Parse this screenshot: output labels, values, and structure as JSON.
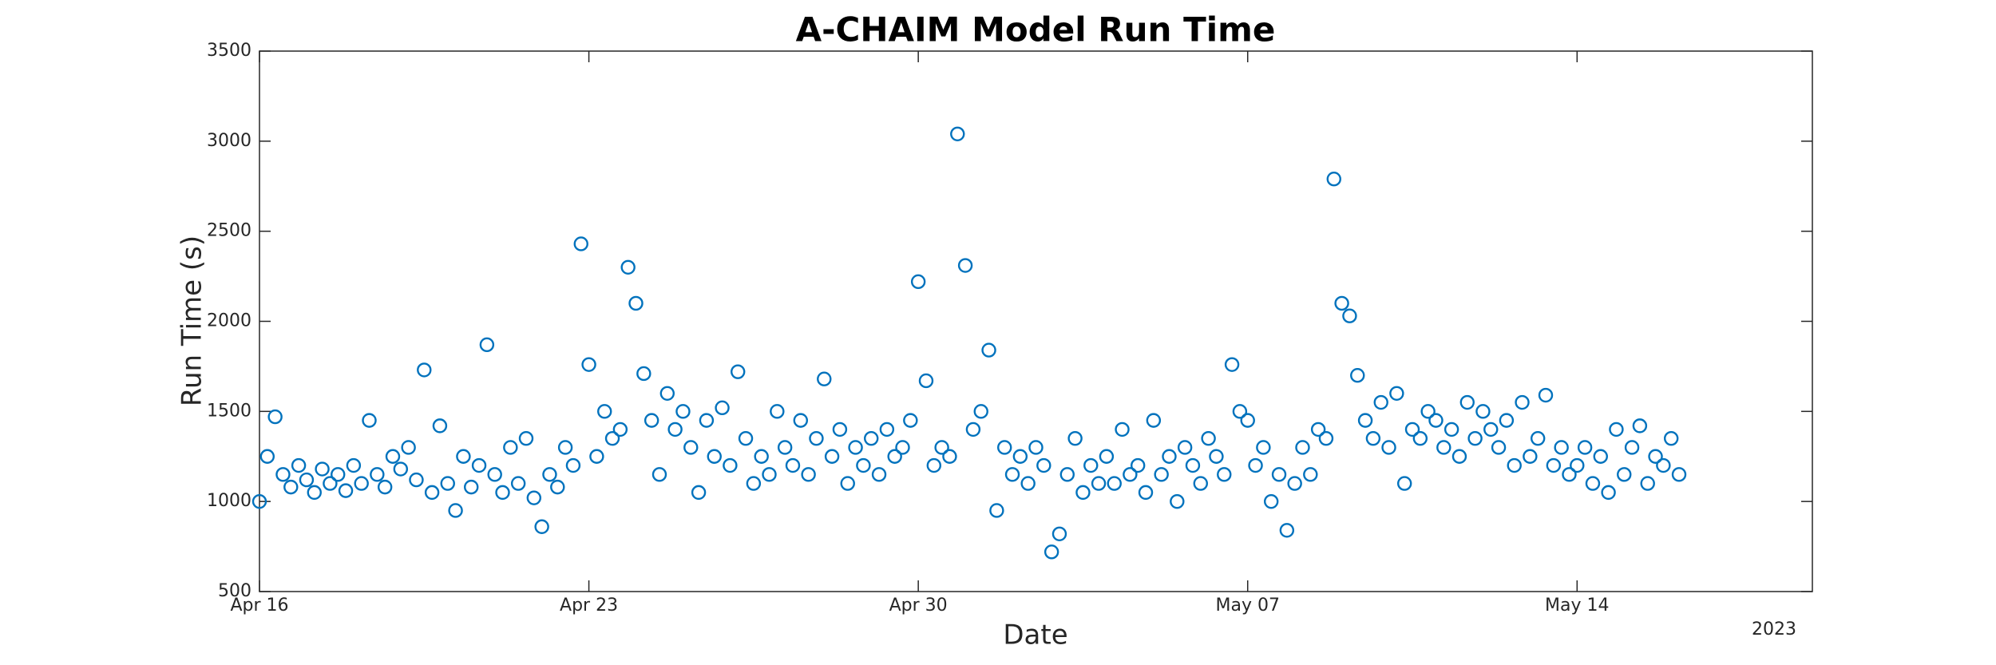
{
  "chart_data": {
    "type": "scatter",
    "title": "A-CHAIM Model Run Time",
    "xlabel": "Date",
    "ylabel": "Run Time (s)",
    "x_secondary_label": "2023",
    "color": "#0072bd",
    "marker": "open-circle",
    "xlim": [
      "2023-04-16",
      "2023-05-19"
    ],
    "xticks": [
      {
        "value": "2023-04-16",
        "label": "Apr 16"
      },
      {
        "value": "2023-04-23",
        "label": "Apr 23"
      },
      {
        "value": "2023-04-30",
        "label": "Apr 30"
      },
      {
        "value": "2023-05-07",
        "label": "May 07"
      },
      {
        "value": "2023-05-14",
        "label": "May 14"
      }
    ],
    "ylim": [
      500,
      3500
    ],
    "yticks": [
      500,
      1000,
      1500,
      2000,
      2500,
      3000,
      3500
    ],
    "grid": false,
    "x": [
      "2023-04-16T00:00",
      "2023-04-16T04:00",
      "2023-04-16T08:00",
      "2023-04-16T12:00",
      "2023-04-16T16:00",
      "2023-04-16T20:00",
      "2023-04-17T00:00",
      "2023-04-17T04:00",
      "2023-04-17T08:00",
      "2023-04-17T12:00",
      "2023-04-17T16:00",
      "2023-04-17T20:00",
      "2023-04-18T00:00",
      "2023-04-18T04:00",
      "2023-04-18T08:00",
      "2023-04-18T12:00",
      "2023-04-18T16:00",
      "2023-04-18T20:00",
      "2023-04-19T00:00",
      "2023-04-19T04:00",
      "2023-04-19T08:00",
      "2023-04-19T12:00",
      "2023-04-19T16:00",
      "2023-04-19T20:00",
      "2023-04-20T00:00",
      "2023-04-20T04:00",
      "2023-04-20T08:00",
      "2023-04-20T12:00",
      "2023-04-20T16:00",
      "2023-04-20T20:00",
      "2023-04-21T00:00",
      "2023-04-21T04:00",
      "2023-04-21T08:00",
      "2023-04-21T12:00",
      "2023-04-21T16:00",
      "2023-04-21T20:00",
      "2023-04-22T00:00",
      "2023-04-22T04:00",
      "2023-04-22T08:00",
      "2023-04-22T12:00",
      "2023-04-22T16:00",
      "2023-04-22T20:00",
      "2023-04-23T00:00",
      "2023-04-23T04:00",
      "2023-04-23T08:00",
      "2023-04-23T12:00",
      "2023-04-23T16:00",
      "2023-04-23T20:00",
      "2023-04-24T00:00",
      "2023-04-24T04:00",
      "2023-04-24T08:00",
      "2023-04-24T12:00",
      "2023-04-24T16:00",
      "2023-04-24T20:00",
      "2023-04-25T00:00",
      "2023-04-25T04:00",
      "2023-04-25T08:00",
      "2023-04-25T12:00",
      "2023-04-25T16:00",
      "2023-04-25T20:00",
      "2023-04-26T00:00",
      "2023-04-26T04:00",
      "2023-04-26T08:00",
      "2023-04-26T12:00",
      "2023-04-26T16:00",
      "2023-04-26T20:00",
      "2023-04-27T00:00",
      "2023-04-27T04:00",
      "2023-04-27T08:00",
      "2023-04-27T12:00",
      "2023-04-27T16:00",
      "2023-04-27T20:00",
      "2023-04-28T00:00",
      "2023-04-28T04:00",
      "2023-04-28T08:00",
      "2023-04-28T12:00",
      "2023-04-28T16:00",
      "2023-04-28T20:00",
      "2023-04-29T00:00",
      "2023-04-29T04:00",
      "2023-04-29T08:00",
      "2023-04-29T12:00",
      "2023-04-29T16:00",
      "2023-04-29T20:00",
      "2023-04-30T00:00",
      "2023-04-30T04:00",
      "2023-04-30T08:00",
      "2023-04-30T12:00",
      "2023-04-30T16:00",
      "2023-04-30T20:00",
      "2023-05-01T00:00",
      "2023-05-01T04:00",
      "2023-05-01T08:00",
      "2023-05-01T12:00",
      "2023-05-01T16:00",
      "2023-05-01T20:00",
      "2023-05-02T00:00",
      "2023-05-02T04:00",
      "2023-05-02T08:00",
      "2023-05-02T12:00",
      "2023-05-02T16:00",
      "2023-05-02T20:00",
      "2023-05-03T00:00",
      "2023-05-03T04:00",
      "2023-05-03T08:00",
      "2023-05-03T12:00",
      "2023-05-03T16:00",
      "2023-05-03T20:00",
      "2023-05-04T00:00",
      "2023-05-04T04:00",
      "2023-05-04T08:00",
      "2023-05-04T12:00",
      "2023-05-04T16:00",
      "2023-05-04T20:00",
      "2023-05-05T00:00",
      "2023-05-05T04:00",
      "2023-05-05T08:00",
      "2023-05-05T12:00",
      "2023-05-05T16:00",
      "2023-05-05T20:00",
      "2023-05-06T00:00",
      "2023-05-06T04:00",
      "2023-05-06T08:00",
      "2023-05-06T12:00",
      "2023-05-06T16:00",
      "2023-05-06T20:00",
      "2023-05-07T00:00",
      "2023-05-07T04:00",
      "2023-05-07T08:00",
      "2023-05-07T12:00",
      "2023-05-07T16:00",
      "2023-05-07T20:00",
      "2023-05-08T00:00",
      "2023-05-08T04:00",
      "2023-05-08T08:00",
      "2023-05-08T12:00",
      "2023-05-08T16:00",
      "2023-05-08T20:00",
      "2023-05-09T00:00",
      "2023-05-09T04:00",
      "2023-05-09T08:00",
      "2023-05-09T12:00",
      "2023-05-09T16:00",
      "2023-05-09T20:00",
      "2023-05-10T00:00",
      "2023-05-10T04:00",
      "2023-05-10T08:00",
      "2023-05-10T12:00",
      "2023-05-10T16:00",
      "2023-05-10T20:00",
      "2023-05-11T00:00",
      "2023-05-11T04:00",
      "2023-05-11T08:00",
      "2023-05-11T12:00",
      "2023-05-11T16:00",
      "2023-05-11T20:00",
      "2023-05-12T00:00",
      "2023-05-12T04:00",
      "2023-05-12T08:00",
      "2023-05-12T12:00",
      "2023-05-12T16:00",
      "2023-05-12T20:00",
      "2023-05-13T00:00",
      "2023-05-13T04:00",
      "2023-05-13T08:00",
      "2023-05-13T12:00",
      "2023-05-13T16:00",
      "2023-05-13T20:00",
      "2023-05-14T00:00",
      "2023-05-14T04:00",
      "2023-05-14T08:00",
      "2023-05-14T12:00",
      "2023-05-14T16:00",
      "2023-05-14T20:00",
      "2023-05-15T00:00",
      "2023-05-15T04:00",
      "2023-05-15T08:00",
      "2023-05-15T12:00",
      "2023-05-15T16:00",
      "2023-05-15T20:00",
      "2023-05-16T00:00",
      "2023-05-16T04:00"
    ],
    "values": [
      1000,
      1250,
      1470,
      1150,
      1080,
      1200,
      1120,
      1050,
      1180,
      1100,
      1150,
      1060,
      1200,
      1100,
      1450,
      1150,
      1080,
      1250,
      1180,
      1300,
      1120,
      1730,
      1050,
      1420,
      1100,
      950,
      1250,
      1080,
      1200,
      1870,
      1150,
      1050,
      1300,
      1100,
      1350,
      1020,
      860,
      1150,
      1080,
      1300,
      1200,
      2430,
      1760,
      1250,
      1500,
      1350,
      1400,
      2300,
      2100,
      1710,
      1450,
      1150,
      1600,
      1400,
      1500,
      1300,
      1050,
      1450,
      1250,
      1520,
      1200,
      1720,
      1350,
      1100,
      1250,
      1150,
      1500,
      1300,
      1200,
      1450,
      1150,
      1350,
      1680,
      1250,
      1400,
      1100,
      1300,
      1200,
      1350,
      1150,
      1400,
      1250,
      1300,
      1450,
      2220,
      1670,
      1200,
      1300,
      1250,
      3040,
      2310,
      1400,
      1500,
      1840,
      950,
      1300,
      1150,
      1250,
      1100,
      1300,
      1200,
      720,
      820,
      1150,
      1350,
      1050,
      1200,
      1100,
      1250,
      1100,
      1400,
      1150,
      1200,
      1050,
      1450,
      1150,
      1250,
      1000,
      1300,
      1200,
      1100,
      1350,
      1250,
      1150,
      1760,
      1500,
      1450,
      1200,
      1300,
      1000,
      1150,
      840,
      1100,
      1300,
      1150,
      1400,
      1350,
      2790,
      2100,
      2030,
      1700,
      1450,
      1350,
      1550,
      1300,
      1600,
      1100,
      1400,
      1350,
      1500,
      1450,
      1300,
      1400,
      1250,
      1550,
      1350,
      1500,
      1400,
      1300,
      1450,
      1200,
      1550,
      1250,
      1350,
      1590,
      1200,
      1300,
      1150,
      1200,
      1300,
      1100,
      1250,
      1050,
      1400,
      1150,
      1300,
      1420,
      1100,
      1250,
      1200,
      1350,
      1150
    ]
  }
}
